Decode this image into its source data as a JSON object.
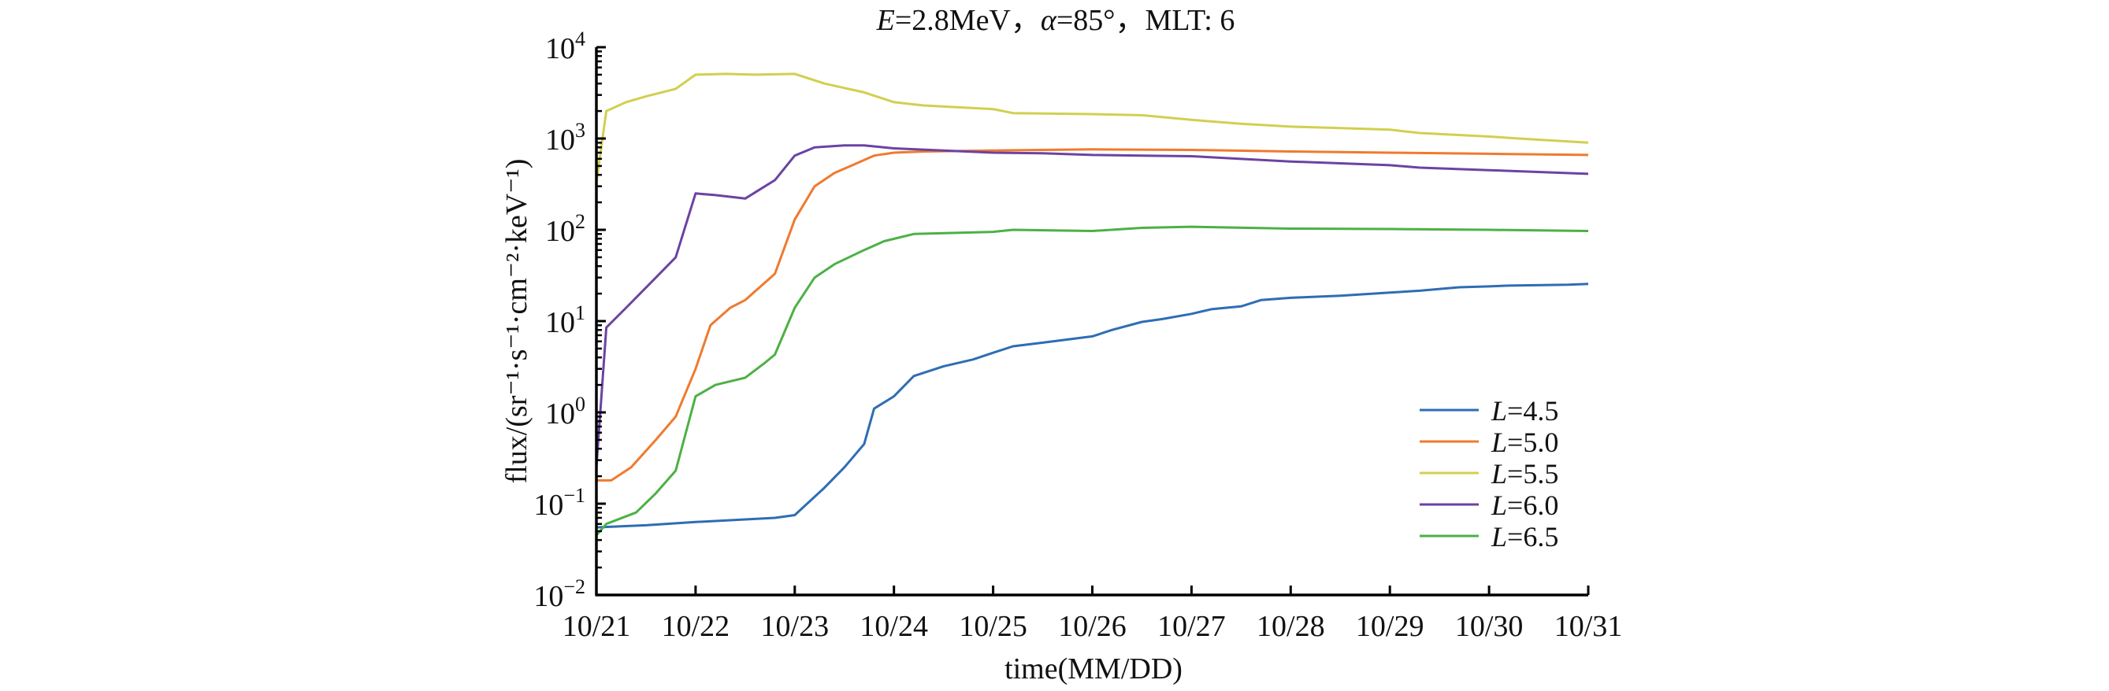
{
  "chart_data": {
    "type": "line",
    "title": {
      "E_var": "E",
      "E_text": "=2.8MeV，",
      "alpha_var": "α",
      "alpha_text": "=85°，MLT: 6"
    },
    "xlabel": "time(MM/DD)",
    "ylabel": "flux/(sr⁻¹·s⁻¹·cm⁻²·keV⁻¹)",
    "x_unit": "days since 10/21",
    "xlim": [
      0,
      10
    ],
    "x_tick_labels": [
      "10/21",
      "10/22",
      "10/23",
      "10/24",
      "10/25",
      "10/26",
      "10/27",
      "10/28",
      "10/29",
      "10/30",
      "10/31"
    ],
    "yscale": "log",
    "ylim": [
      0.01,
      10000
    ],
    "y_tick_exponents": [
      "−2",
      "−1",
      "0",
      "1",
      "2",
      "3",
      "4"
    ],
    "y_tick_base": "10",
    "legend_position": "right",
    "grid": false,
    "series": [
      {
        "name_var": "L",
        "name_text": "=4.5",
        "color": "#2e6db4",
        "x": [
          0,
          0.5,
          1,
          1.8,
          2,
          2.3,
          2.5,
          2.7,
          2.8,
          3,
          3.2,
          3.5,
          3.8,
          4,
          4.2,
          4.5,
          5,
          5.2,
          5.5,
          5.7,
          6,
          6.2,
          6.5,
          6.7,
          7,
          7.5,
          8,
          8.3,
          8.7,
          9,
          9.2,
          9.8,
          10
        ],
        "y": [
          0.055,
          0.058,
          0.063,
          0.07,
          0.075,
          0.15,
          0.25,
          0.45,
          1.1,
          1.5,
          2.5,
          3.2,
          3.8,
          4.5,
          5.3,
          5.8,
          6.8,
          8,
          9.8,
          10.5,
          12,
          13.5,
          14.5,
          17,
          18,
          19,
          20.5,
          21.5,
          23.5,
          24,
          24.5,
          25,
          25.5
        ]
      },
      {
        "name_var": "L",
        "name_text": "=5.0",
        "color": "#ef7a2f",
        "x": [
          0,
          0.15,
          0.35,
          0.6,
          0.8,
          1,
          1.15,
          1.35,
          1.5,
          1.8,
          2,
          2.2,
          2.4,
          2.6,
          2.8,
          3,
          3.3,
          4,
          5,
          6,
          7,
          8,
          9,
          10
        ],
        "y": [
          0.18,
          0.18,
          0.25,
          0.5,
          0.9,
          3,
          9,
          14,
          17,
          33,
          130,
          300,
          420,
          520,
          650,
          700,
          720,
          740,
          760,
          750,
          720,
          700,
          680,
          660
        ]
      },
      {
        "name_var": "L",
        "name_text": "=5.5",
        "color": "#d2cf4f",
        "x": [
          0,
          0.1,
          0.3,
          0.5,
          0.8,
          1,
          1.3,
          1.6,
          2,
          2.3,
          2.7,
          3,
          3.3,
          4,
          4.2,
          5,
          5.5,
          6,
          6.5,
          7,
          7.5,
          8,
          8.3,
          9,
          9.3,
          10
        ],
        "y": [
          330,
          2000,
          2500,
          2900,
          3500,
          5000,
          5100,
          5000,
          5100,
          4000,
          3200,
          2500,
          2300,
          2100,
          1900,
          1850,
          1800,
          1600,
          1450,
          1350,
          1300,
          1250,
          1150,
          1050,
          1000,
          900
        ]
      },
      {
        "name_var": "L",
        "name_text": "=6.0",
        "color": "#6b43a3",
        "x": [
          0,
          0.1,
          0.3,
          0.6,
          0.8,
          1,
          1.2,
          1.5,
          1.7,
          1.8,
          2,
          2.2,
          2.5,
          2.7,
          3,
          3.5,
          4,
          4.5,
          5,
          5.5,
          6,
          7,
          8,
          8.3,
          9,
          10
        ],
        "y": [
          0.25,
          8.5,
          14,
          30,
          50,
          250,
          240,
          220,
          300,
          350,
          650,
          800,
          840,
          840,
          780,
          740,
          700,
          690,
          660,
          650,
          640,
          560,
          510,
          480,
          450,
          410
        ]
      },
      {
        "name_var": "L",
        "name_text": "=6.5",
        "color": "#4cb145",
        "x": [
          0,
          0.1,
          0.4,
          0.6,
          0.8,
          1,
          1.2,
          1.5,
          1.7,
          1.8,
          2,
          2.2,
          2.4,
          2.7,
          2.9,
          3.2,
          4,
          4.2,
          5,
          5.5,
          6,
          7,
          8,
          9,
          10
        ],
        "y": [
          0.045,
          0.06,
          0.08,
          0.13,
          0.23,
          1.5,
          2.0,
          2.4,
          3.5,
          4.3,
          14,
          30,
          42,
          60,
          75,
          90,
          95,
          100,
          97,
          105,
          108,
          103,
          102,
          100,
          97
        ]
      }
    ]
  }
}
